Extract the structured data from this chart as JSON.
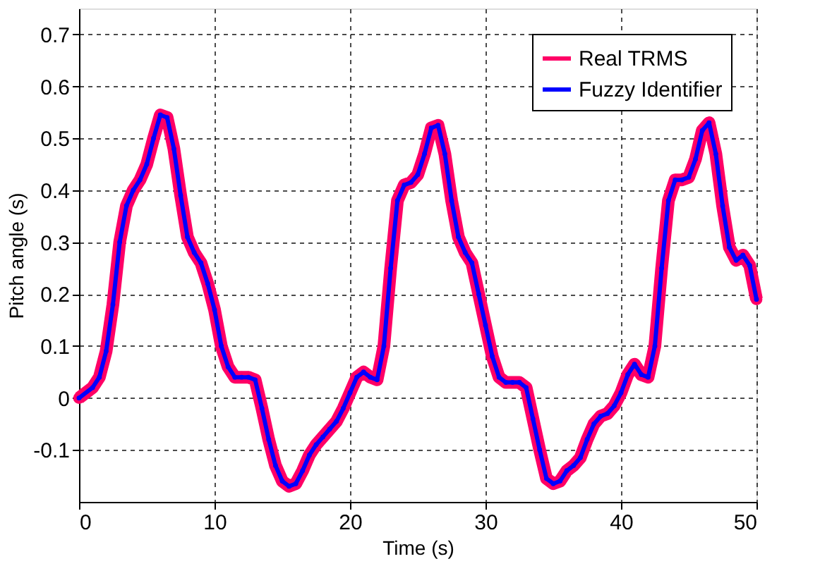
{
  "chart_data": {
    "type": "line",
    "xlabel": "Time (s)",
    "ylabel": "Pitch angle (s)",
    "x": [
      0,
      1,
      1.5,
      2,
      2.5,
      3,
      3.5,
      4,
      4.5,
      5,
      5.5,
      6,
      6.5,
      7,
      7.5,
      8,
      8.5,
      9,
      9.5,
      10,
      10.5,
      11,
      11.5,
      12,
      12.5,
      13,
      13.5,
      14,
      14.5,
      15,
      15.5,
      16,
      16.5,
      17,
      17.5,
      18,
      18.5,
      19,
      19.5,
      20,
      20.5,
      21,
      21.5,
      22,
      22.5,
      23,
      23.5,
      24,
      24.5,
      25,
      25.5,
      26,
      26.5,
      27,
      27.5,
      28,
      28.5,
      29,
      29.5,
      30,
      30.5,
      31,
      31.5,
      32,
      32.5,
      33,
      33.5,
      34,
      34.5,
      35,
      35.5,
      36,
      36.5,
      37,
      37.5,
      38,
      38.5,
      39,
      39.5,
      40,
      40.5,
      41,
      41.5,
      42,
      42.5,
      43,
      43.5,
      44,
      44.5,
      45,
      45.5,
      46,
      46.5,
      47,
      47.5,
      48,
      48.5,
      49,
      49.5,
      50
    ],
    "series": [
      {
        "name": "Real TRMS",
        "color": "#ff0066",
        "values": [
          0,
          0.02,
          0.04,
          0.09,
          0.18,
          0.3,
          0.37,
          0.4,
          0.42,
          0.45,
          0.5,
          0.545,
          0.54,
          0.48,
          0.39,
          0.31,
          0.28,
          0.26,
          0.22,
          0.17,
          0.1,
          0.06,
          0.04,
          0.04,
          0.04,
          0.035,
          -0.02,
          -0.08,
          -0.13,
          -0.16,
          -0.17,
          -0.165,
          -0.14,
          -0.11,
          -0.09,
          -0.075,
          -0.06,
          -0.045,
          -0.02,
          0.01,
          0.04,
          0.05,
          0.04,
          0.035,
          0.1,
          0.25,
          0.38,
          0.41,
          0.415,
          0.43,
          0.47,
          0.52,
          0.525,
          0.47,
          0.38,
          0.31,
          0.28,
          0.26,
          0.2,
          0.14,
          0.08,
          0.04,
          0.03,
          0.03,
          0.03,
          0.02,
          -0.04,
          -0.1,
          -0.155,
          -0.165,
          -0.16,
          -0.14,
          -0.13,
          -0.115,
          -0.08,
          -0.05,
          -0.035,
          -0.03,
          -0.015,
          0.01,
          0.045,
          0.065,
          0.045,
          0.04,
          0.1,
          0.25,
          0.38,
          0.42,
          0.42,
          0.425,
          0.46,
          0.515,
          0.53,
          0.47,
          0.37,
          0.29,
          0.265,
          0.275,
          0.255,
          0.19
        ]
      },
      {
        "name": "Fuzzy Identifier",
        "color": "#0000ff",
        "values": [
          0,
          0.02,
          0.04,
          0.09,
          0.18,
          0.3,
          0.37,
          0.4,
          0.42,
          0.45,
          0.5,
          0.545,
          0.54,
          0.48,
          0.39,
          0.31,
          0.28,
          0.26,
          0.22,
          0.17,
          0.1,
          0.06,
          0.04,
          0.04,
          0.04,
          0.035,
          -0.02,
          -0.08,
          -0.13,
          -0.16,
          -0.17,
          -0.165,
          -0.14,
          -0.11,
          -0.09,
          -0.075,
          -0.06,
          -0.045,
          -0.02,
          0.01,
          0.04,
          0.05,
          0.04,
          0.035,
          0.1,
          0.25,
          0.38,
          0.41,
          0.415,
          0.43,
          0.47,
          0.52,
          0.525,
          0.47,
          0.38,
          0.31,
          0.28,
          0.26,
          0.2,
          0.14,
          0.08,
          0.04,
          0.03,
          0.03,
          0.03,
          0.02,
          -0.04,
          -0.1,
          -0.155,
          -0.165,
          -0.16,
          -0.14,
          -0.13,
          -0.115,
          -0.08,
          -0.05,
          -0.035,
          -0.03,
          -0.015,
          0.01,
          0.045,
          0.065,
          0.045,
          0.04,
          0.1,
          0.25,
          0.38,
          0.42,
          0.42,
          0.425,
          0.46,
          0.515,
          0.53,
          0.47,
          0.37,
          0.29,
          0.265,
          0.275,
          0.255,
          0.19
        ]
      }
    ],
    "xlim": [
      0,
      50
    ],
    "xticks": [
      0,
      10,
      20,
      30,
      40,
      50
    ],
    "ylim": [
      -0.2,
      0.75
    ],
    "yticks": [
      -0.1,
      0,
      0.1,
      0.2,
      0.3,
      0.4,
      0.5,
      0.6,
      0.7
    ],
    "grid": true,
    "legend": "top right",
    "marker": "circle",
    "line_style": "solid"
  }
}
